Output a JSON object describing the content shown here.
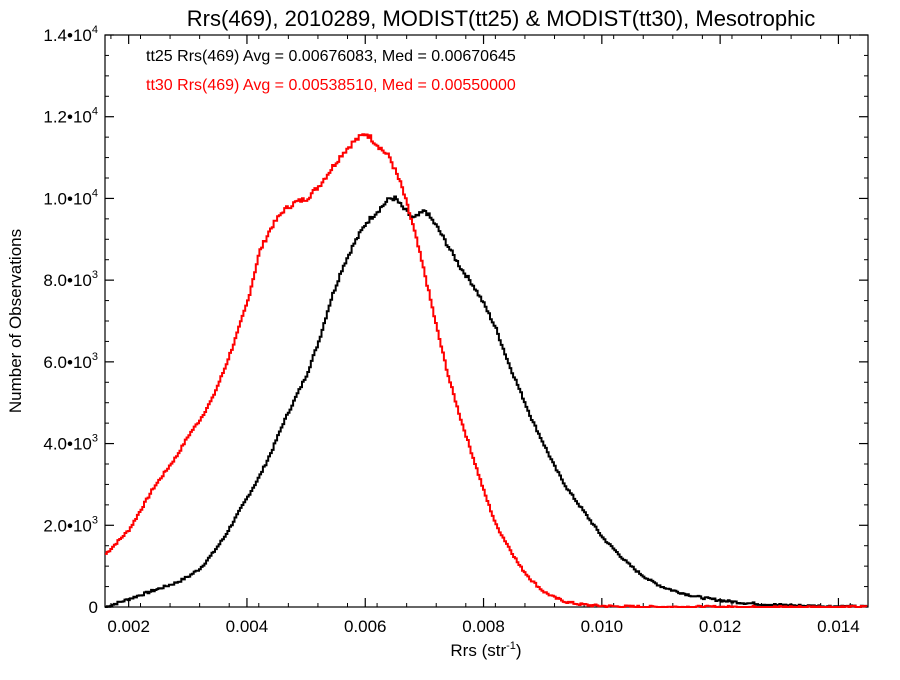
{
  "chart_data": {
    "type": "line",
    "title": "Rrs(469), 2010289, MODIST(tt25) & MODIST(tt30), Mesotrophic",
    "xlabel": "Rrs (str",
    "xlabel_sup": "-1",
    "xlabel_close": ")",
    "ylabel": "Number of Observations",
    "xlim": [
      0.0016,
      0.0145
    ],
    "ylim": [
      0,
      14000
    ],
    "x_ticks": [
      {
        "value": 0.002,
        "label": "0.002"
      },
      {
        "value": 0.004,
        "label": "0.004"
      },
      {
        "value": 0.006,
        "label": "0.006"
      },
      {
        "value": 0.008,
        "label": "0.008"
      },
      {
        "value": 0.01,
        "label": "0.010"
      },
      {
        "value": 0.012,
        "label": "0.012"
      },
      {
        "value": 0.014,
        "label": "0.014"
      }
    ],
    "y_ticks": [
      {
        "value": 0,
        "mantissa": "0",
        "exp": ""
      },
      {
        "value": 2000,
        "mantissa": "2.0•10",
        "exp": "3"
      },
      {
        "value": 4000,
        "mantissa": "4.0•10",
        "exp": "3"
      },
      {
        "value": 6000,
        "mantissa": "6.0•10",
        "exp": "3"
      },
      {
        "value": 8000,
        "mantissa": "8.0•10",
        "exp": "3"
      },
      {
        "value": 10000,
        "mantissa": "1.0•10",
        "exp": "4"
      },
      {
        "value": 12000,
        "mantissa": "1.2•10",
        "exp": "4"
      },
      {
        "value": 14000,
        "mantissa": "1.4•10",
        "exp": "4"
      }
    ],
    "annotations": [
      {
        "text": "tt25 Rrs(469) Avg = 0.00676083, Med = 0.00670645",
        "color": "#000000"
      },
      {
        "text": "tt30 Rrs(469) Avg = 0.00538510, Med = 0.00550000",
        "color": "#ff0000"
      }
    ],
    "series": [
      {
        "color": "#000000",
        "x": [
          0.0016,
          0.002,
          0.0024,
          0.0028,
          0.003,
          0.0032,
          0.0034,
          0.0036,
          0.0038,
          0.004,
          0.0042,
          0.0044,
          0.0046,
          0.0048,
          0.005,
          0.0052,
          0.0054,
          0.0056,
          0.0058,
          0.006,
          0.0062,
          0.0064,
          0.0065,
          0.0066,
          0.0068,
          0.007,
          0.0072,
          0.0074,
          0.0076,
          0.0078,
          0.008,
          0.0082,
          0.0084,
          0.0086,
          0.0088,
          0.009,
          0.0092,
          0.0094,
          0.0096,
          0.0098,
          0.01,
          0.0102,
          0.0104,
          0.0106,
          0.0108,
          0.011,
          0.0112,
          0.0114,
          0.0116,
          0.0118,
          0.012,
          0.0122,
          0.0124,
          0.0126,
          0.0128,
          0.013,
          0.0132,
          0.0134,
          0.0136,
          0.0138,
          0.014,
          0.0142,
          0.0145
        ],
        "y": [
          0,
          200,
          400,
          600,
          750,
          950,
          1300,
          1700,
          2200,
          2700,
          3200,
          3800,
          4500,
          5100,
          5700,
          6500,
          7500,
          8300,
          8900,
          9400,
          9700,
          10000,
          10000,
          9800,
          9500,
          9700,
          9300,
          8800,
          8300,
          7900,
          7400,
          6800,
          6000,
          5300,
          4600,
          4000,
          3400,
          2900,
          2500,
          2100,
          1700,
          1400,
          1100,
          850,
          650,
          500,
          400,
          320,
          250,
          200,
          160,
          130,
          100,
          80,
          60,
          50,
          40,
          30,
          25,
          20,
          15,
          10,
          5
        ]
      },
      {
        "color": "#ff0000",
        "x": [
          0.0016,
          0.0018,
          0.002,
          0.0022,
          0.0024,
          0.0026,
          0.0028,
          0.003,
          0.0032,
          0.0034,
          0.0036,
          0.0038,
          0.004,
          0.0042,
          0.0044,
          0.0046,
          0.0048,
          0.005,
          0.0052,
          0.0054,
          0.0056,
          0.0058,
          0.006,
          0.0062,
          0.0064,
          0.0066,
          0.0068,
          0.007,
          0.0072,
          0.0074,
          0.0076,
          0.0078,
          0.008,
          0.0082,
          0.0084,
          0.0086,
          0.0088,
          0.009,
          0.0092,
          0.0094,
          0.0096,
          0.0098,
          0.01,
          0.0102,
          0.0104,
          0.0106,
          0.011,
          0.0115,
          0.012,
          0.013,
          0.0145
        ],
        "y": [
          1300,
          1600,
          1900,
          2400,
          2900,
          3300,
          3700,
          4200,
          4600,
          5100,
          5800,
          6600,
          7500,
          8700,
          9300,
          9700,
          9900,
          10000,
          10300,
          10700,
          11100,
          11400,
          11600,
          11300,
          11000,
          10300,
          9300,
          8100,
          6800,
          5600,
          4600,
          3700,
          2800,
          2000,
          1500,
          1000,
          650,
          380,
          220,
          120,
          70,
          40,
          25,
          15,
          10,
          5,
          3,
          2,
          1,
          0,
          0
        ]
      }
    ]
  }
}
